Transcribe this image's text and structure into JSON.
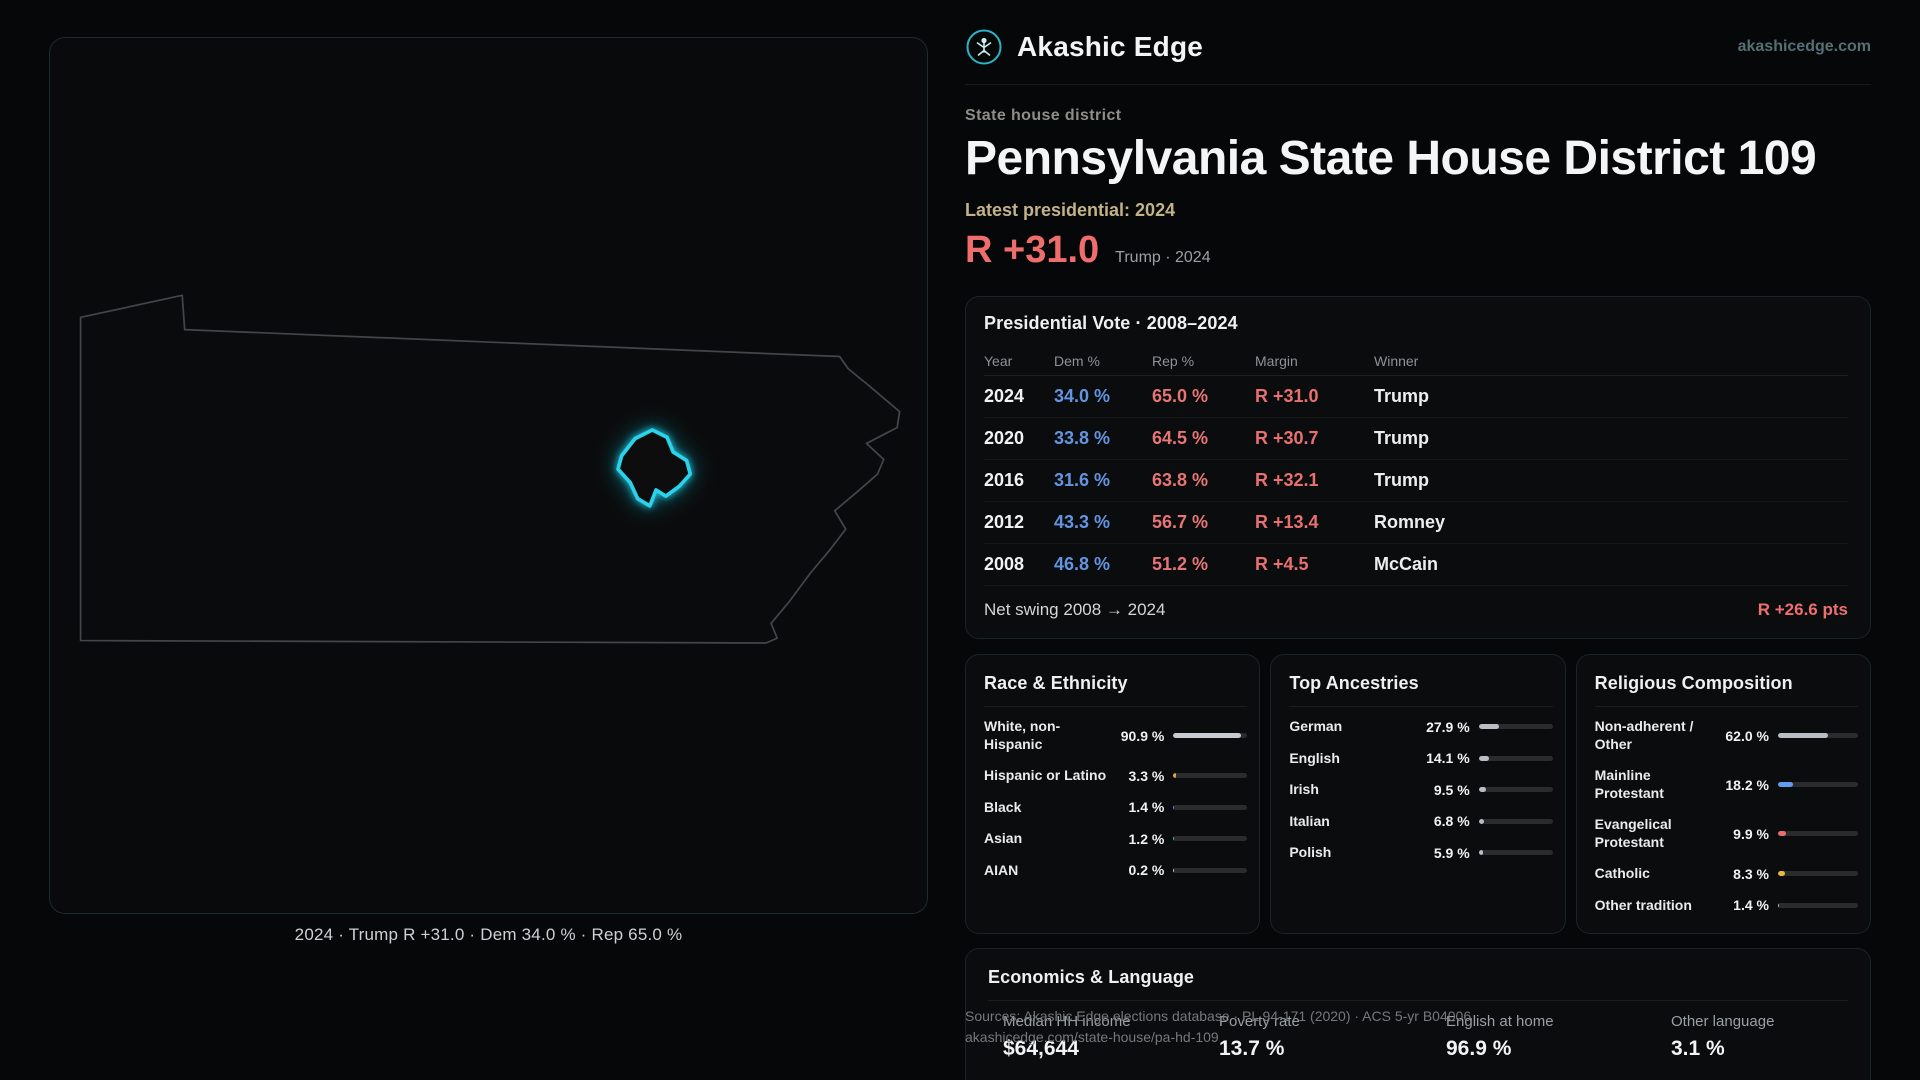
{
  "header": {
    "brand": "Akashic Edge",
    "site": "akashicedge.com"
  },
  "hero": {
    "kicker": "State house district",
    "title": "Pennsylvania State House District 109",
    "latest": "Latest presidential: 2024",
    "big_margin": "R +31.0",
    "big_margin_context": "Trump · 2024"
  },
  "map_panel": {
    "caption": "2024 · Trump R +31.0 · Dem 34.0 % · Rep 65.0 %",
    "district_color": "#22d3ee"
  },
  "presidential": {
    "title": "Presidential Vote · 2008–2024",
    "columns": {
      "year": "Year",
      "dem": "Dem %",
      "rep": "Rep %",
      "margin": "Margin",
      "winner": "Winner"
    },
    "rows": [
      {
        "year": "2024",
        "dem": "34.0 %",
        "rep": "65.0 %",
        "margin": "R +31.0",
        "winner": "Trump"
      },
      {
        "year": "2020",
        "dem": "33.8 %",
        "rep": "64.5 %",
        "margin": "R +30.7",
        "winner": "Trump"
      },
      {
        "year": "2016",
        "dem": "31.6 %",
        "rep": "63.8 %",
        "margin": "R +32.1",
        "winner": "Trump"
      },
      {
        "year": "2012",
        "dem": "43.3 %",
        "rep": "56.7 %",
        "margin": "R +13.4",
        "winner": "Romney"
      },
      {
        "year": "2008",
        "dem": "46.8 %",
        "rep": "51.2 %",
        "margin": "R +4.5",
        "winner": "McCain"
      }
    ],
    "net_swing_label": "Net swing 2008 → 2024",
    "net_swing_value": "R +26.6 pts"
  },
  "race": {
    "title": "Race & Ethnicity",
    "rows": [
      {
        "label": "White, non-Hispanic",
        "value": "90.9 %",
        "pct": 90.9,
        "color": "#c6cbd1"
      },
      {
        "label": "Hispanic or Latino",
        "value": "3.3 %",
        "pct": 3.3,
        "color": "#e2a43e"
      },
      {
        "label": "Black",
        "value": "1.4 %",
        "pct": 1.4,
        "color": "#8f6cf0"
      },
      {
        "label": "Asian",
        "value": "1.2 %",
        "pct": 1.2,
        "color": "#38c98f"
      },
      {
        "label": "AIAN",
        "value": "0.2 %",
        "pct": 0.2,
        "color": "#c6cbd1"
      }
    ]
  },
  "ancestries": {
    "title": "Top Ancestries",
    "rows": [
      {
        "label": "German",
        "value": "27.9 %",
        "pct": 27.9,
        "color": "#b9bec4"
      },
      {
        "label": "English",
        "value": "14.1 %",
        "pct": 14.1,
        "color": "#b9bec4"
      },
      {
        "label": "Irish",
        "value": "9.5 %",
        "pct": 9.5,
        "color": "#b9bec4"
      },
      {
        "label": "Italian",
        "value": "6.8 %",
        "pct": 6.8,
        "color": "#b9bec4"
      },
      {
        "label": "Polish",
        "value": "5.9 %",
        "pct": 5.9,
        "color": "#b9bec4"
      }
    ]
  },
  "religion": {
    "title": "Religious Composition",
    "rows": [
      {
        "label": "Non-adherent / Other",
        "value": "62.0 %",
        "pct": 62.0,
        "color": "#b9bec4"
      },
      {
        "label": "Mainline Protestant",
        "value": "18.2 %",
        "pct": 18.2,
        "color": "#5f9df0"
      },
      {
        "label": "Evangelical Protestant",
        "value": "9.9 %",
        "pct": 9.9,
        "color": "#e87070"
      },
      {
        "label": "Catholic",
        "value": "8.3 %",
        "pct": 8.3,
        "color": "#e5b93c"
      },
      {
        "label": "Other tradition",
        "value": "1.4 %",
        "pct": 1.4,
        "color": "#b9bec4"
      }
    ]
  },
  "economics": {
    "title": "Economics & Language",
    "stats": [
      {
        "label": "Median HH income",
        "value": "$64,644"
      },
      {
        "label": "Poverty rate",
        "value": "13.7 %"
      },
      {
        "label": "English at home",
        "value": "96.9 %"
      },
      {
        "label": "Other language",
        "value": "3.1 %"
      }
    ]
  },
  "footer": {
    "sources": "Sources: Akashic Edge elections database · PL 94-171 (2020) · ACS 5-yr B04006",
    "permalink": "akashicedge.com/state-house/pa-hd-109"
  }
}
